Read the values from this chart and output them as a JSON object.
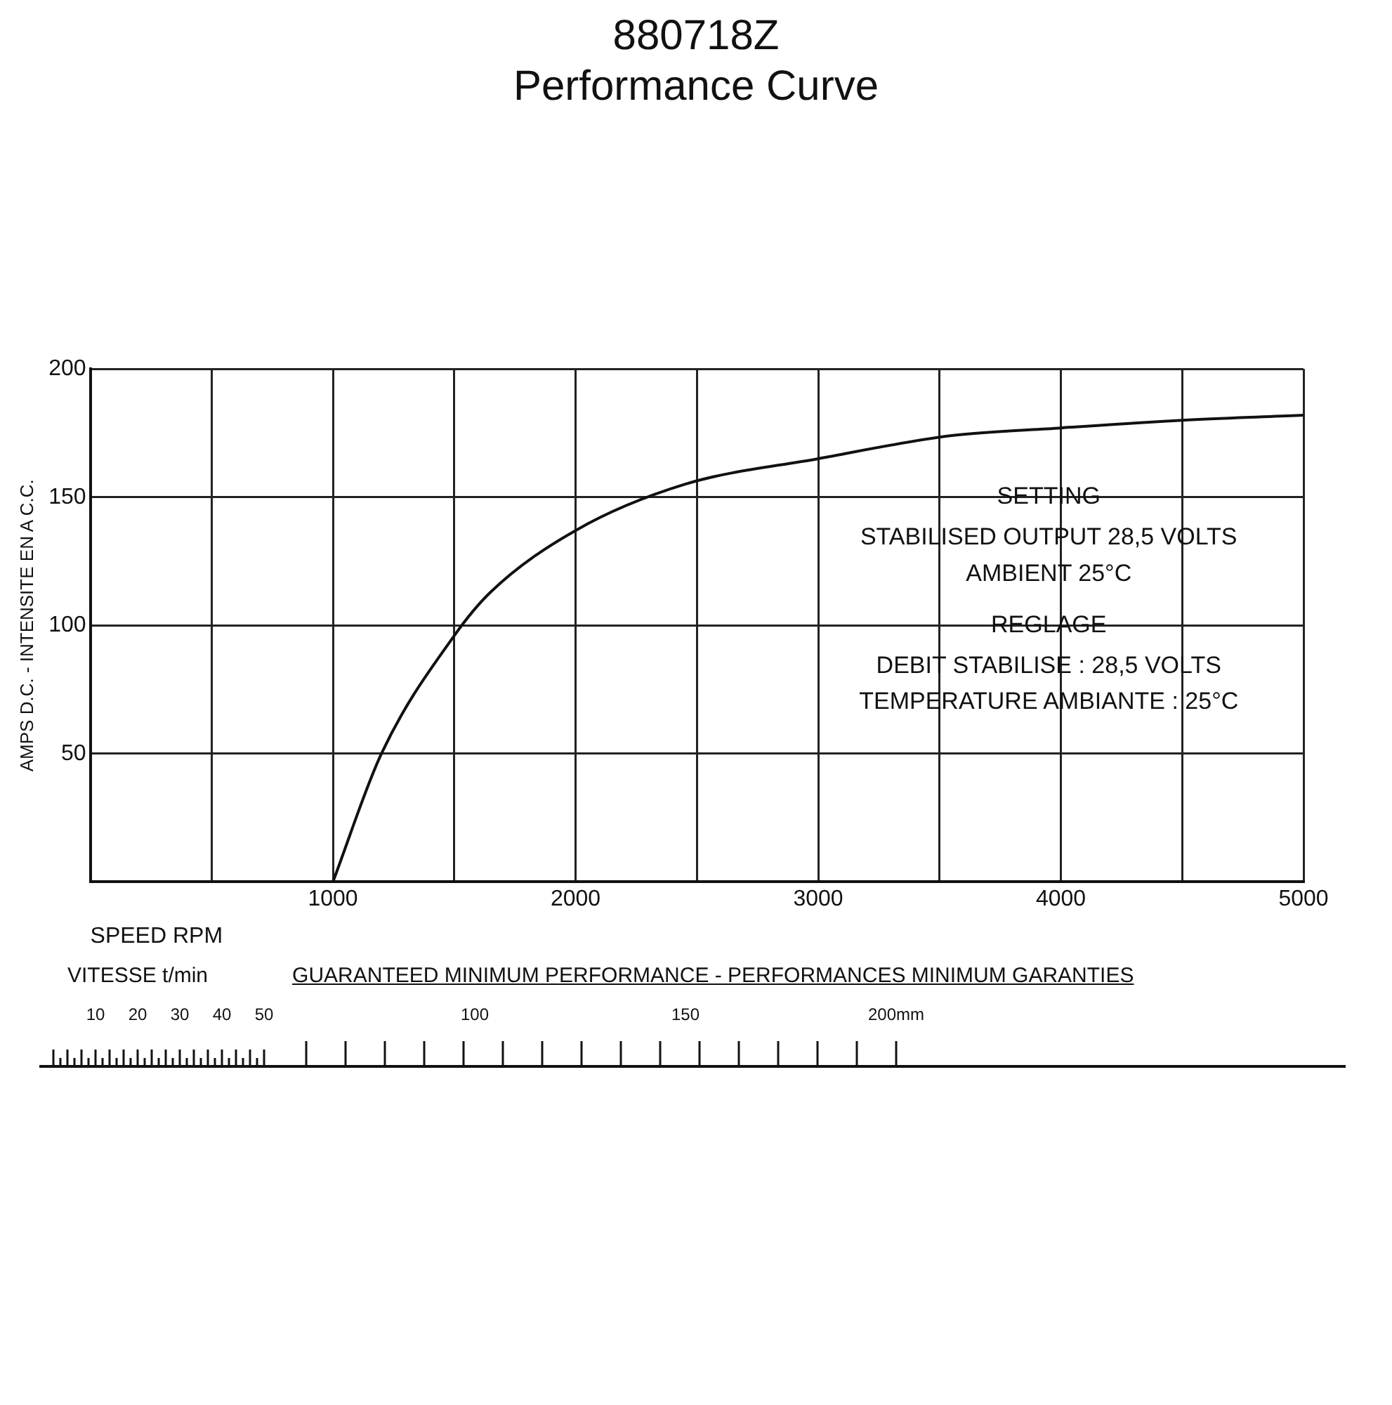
{
  "chart_data": {
    "type": "line",
    "title": "880718Z",
    "subtitle": "Performance Curve",
    "xlabel": "SPEED RPM",
    "ylabel": "AMPS D.C. - INTENSITE EN A C.C.",
    "x": [
      1000,
      1200,
      1500,
      1650,
      2000,
      2450,
      3000,
      3550,
      4000,
      4500,
      5000
    ],
    "series": [
      {
        "color": "#111111",
        "values": [
          0,
          50,
          96,
          113,
          137,
          155,
          165,
          174,
          177,
          180,
          182
        ]
      }
    ],
    "xlim": [
      0,
      5000
    ],
    "xticks": [
      {
        "value": 500,
        "label": null
      },
      1000,
      {
        "value": 1500,
        "label": null
      },
      2000,
      {
        "value": 2500,
        "label": null
      },
      3000,
      {
        "value": 3500,
        "label": null
      },
      4000,
      {
        "value": 4500,
        "label": null
      },
      5000
    ],
    "ylim": [
      0,
      200
    ],
    "yticks": [
      50,
      100,
      150,
      200
    ],
    "grid": true,
    "marker": "none",
    "line_style": "solid",
    "annotations": [
      "SETTING",
      "STABILISED OUTPUT 28,5 VOLTS",
      "AMBIENT 25°C",
      "REGLAGE",
      "DEBIT STABILISE : 28,5 VOLTS",
      "TEMPERATURE AMBIANTE : 25°C",
      "VITESSE t/min",
      "GUARANTEED MINIMUM PERFORMANCE - PERFORMANCES MINIMUM GARANTIES",
      "10",
      "20",
      "30",
      "40",
      "50",
      "100",
      "150",
      "200mm"
    ]
  }
}
